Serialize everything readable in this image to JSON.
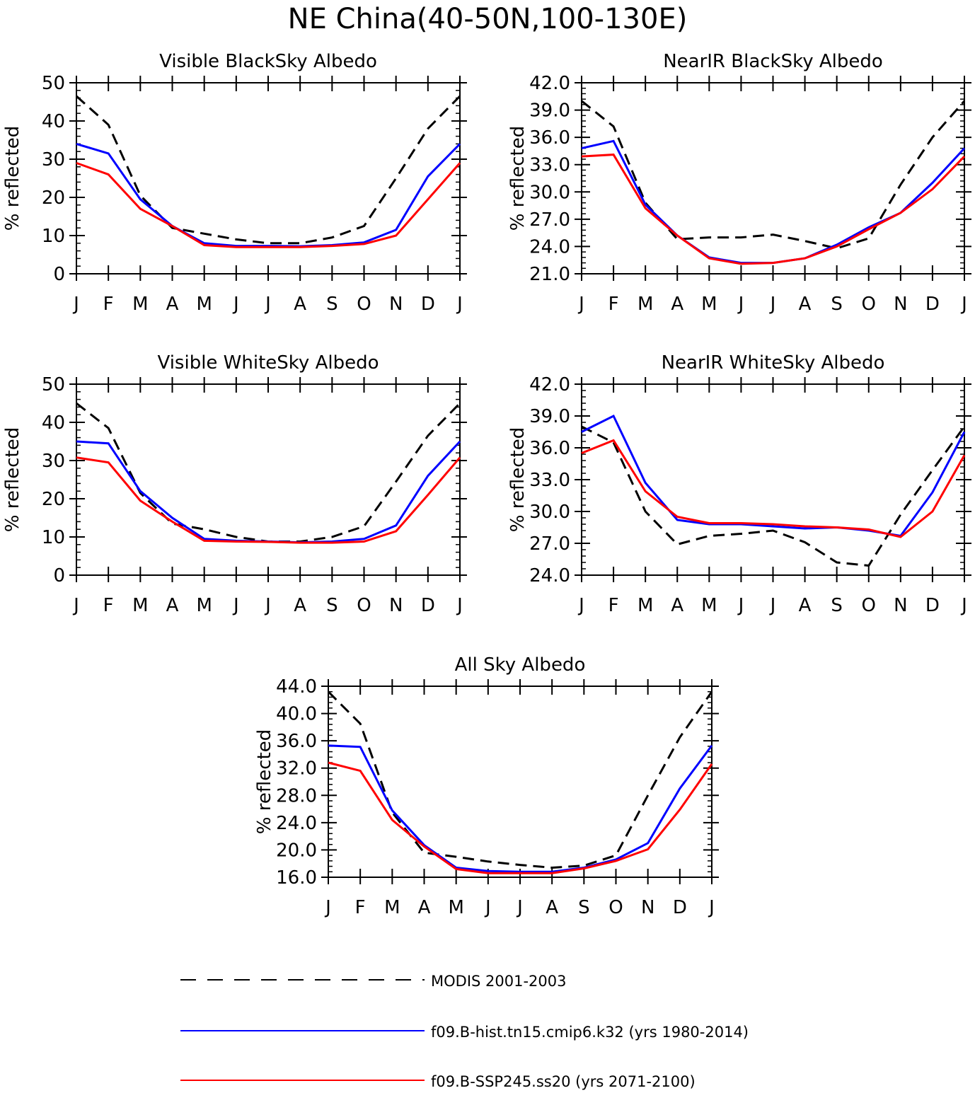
{
  "figure": {
    "title": "NE China(40-50N,100-130E)"
  },
  "legend": {
    "placement": "bottom",
    "entries": [
      {
        "label": "MODIS 2001-2003",
        "color": "#000000",
        "dash": true
      },
      {
        "label": "f09.B-hist.tn15.cmip6.k32 (yrs 1980-2014)",
        "color": "#0000ff",
        "dash": false
      },
      {
        "label": "f09.B-SSP245.ss20 (yrs 2071-2100)",
        "color": "#ff0000",
        "dash": false
      }
    ]
  },
  "chart_data": [
    {
      "type": "line",
      "title": "Visible BlackSky Albedo",
      "xlabel": "",
      "ylabel": "% reflected",
      "categories": [
        "J",
        "F",
        "M",
        "A",
        "M",
        "J",
        "J",
        "A",
        "S",
        "O",
        "N",
        "D",
        "J"
      ],
      "ylim": [
        0,
        50
      ],
      "yticks": [
        "0",
        "10",
        "20",
        "30",
        "40",
        "50"
      ],
      "ytick_values": [
        0,
        10,
        20,
        30,
        40,
        50
      ],
      "grid": false,
      "series": [
        {
          "name": "MODIS 2001-2003",
          "color": "#000000",
          "dash": true,
          "values": [
            46.5,
            39.0,
            20.5,
            12.0,
            10.5,
            9.0,
            8.0,
            8.0,
            9.5,
            12.5,
            25.0,
            38.0,
            46.5
          ]
        },
        {
          "name": "f09.B-hist.tn15.cmip6.k32 (yrs 1980-2014)",
          "color": "#0000ff",
          "dash": false,
          "values": [
            34.0,
            31.5,
            19.5,
            12.5,
            8.0,
            7.3,
            7.3,
            7.2,
            7.5,
            8.2,
            11.5,
            25.5,
            34.0
          ]
        },
        {
          "name": "f09.B-SSP245.ss20 (yrs 2071-2100)",
          "color": "#ff0000",
          "dash": false,
          "values": [
            29.0,
            26.0,
            17.0,
            12.5,
            7.5,
            7.0,
            7.0,
            7.0,
            7.3,
            7.8,
            10.0,
            19.5,
            29.0
          ]
        }
      ]
    },
    {
      "type": "line",
      "title": "NearIR BlackSky Albedo",
      "xlabel": "",
      "ylabel": "% reflected",
      "categories": [
        "J",
        "F",
        "M",
        "A",
        "M",
        "J",
        "J",
        "A",
        "S",
        "O",
        "N",
        "D",
        "J"
      ],
      "ylim": [
        21,
        42
      ],
      "yticks": [
        "21.0",
        "24.0",
        "27.0",
        "30.0",
        "33.0",
        "36.0",
        "39.0",
        "42.0"
      ],
      "ytick_values": [
        21,
        24,
        27,
        30,
        33,
        36,
        39,
        42
      ],
      "grid": false,
      "series": [
        {
          "name": "MODIS 2001-2003",
          "color": "#000000",
          "dash": true,
          "values": [
            40.0,
            37.2,
            28.8,
            24.8,
            25.0,
            25.0,
            25.3,
            24.6,
            23.8,
            24.9,
            30.8,
            36.0,
            40.0
          ]
        },
        {
          "name": "f09.B-hist.tn15.cmip6.k32 (yrs 1980-2014)",
          "color": "#0000ff",
          "dash": false,
          "values": [
            34.8,
            35.6,
            28.6,
            25.2,
            22.8,
            22.2,
            22.2,
            22.7,
            24.2,
            26.1,
            27.7,
            31.0,
            34.8
          ]
        },
        {
          "name": "f09.B-SSP245.ss20 (yrs 2071-2100)",
          "color": "#ff0000",
          "dash": false,
          "values": [
            33.9,
            34.1,
            28.2,
            25.2,
            22.7,
            22.1,
            22.2,
            22.7,
            24.0,
            25.9,
            27.7,
            30.3,
            33.9
          ]
        }
      ]
    },
    {
      "type": "line",
      "title": "Visible WhiteSky Albedo",
      "xlabel": "",
      "ylabel": "% reflected",
      "categories": [
        "J",
        "F",
        "M",
        "A",
        "M",
        "J",
        "J",
        "A",
        "S",
        "O",
        "N",
        "D",
        "J"
      ],
      "ylim": [
        0,
        50
      ],
      "yticks": [
        "0",
        "10",
        "20",
        "30",
        "40",
        "50"
      ],
      "ytick_values": [
        0,
        10,
        20,
        30,
        40,
        50
      ],
      "grid": false,
      "series": [
        {
          "name": "MODIS 2001-2003",
          "color": "#000000",
          "dash": true,
          "values": [
            45.0,
            38.5,
            21.5,
            13.5,
            12.0,
            10.0,
            8.8,
            8.8,
            10.0,
            12.8,
            24.5,
            36.5,
            45.0
          ]
        },
        {
          "name": "f09.B-hist.tn15.cmip6.k32 (yrs 1980-2014)",
          "color": "#0000ff",
          "dash": false,
          "values": [
            35.0,
            34.5,
            22.0,
            15.0,
            9.5,
            9.0,
            8.8,
            8.6,
            8.8,
            9.5,
            13.0,
            26.0,
            35.0
          ]
        },
        {
          "name": "f09.B-SSP245.ss20 (yrs 2071-2100)",
          "color": "#ff0000",
          "dash": false,
          "values": [
            30.8,
            29.5,
            19.5,
            14.0,
            9.0,
            8.8,
            8.7,
            8.5,
            8.5,
            8.8,
            11.5,
            21.0,
            30.8
          ]
        }
      ]
    },
    {
      "type": "line",
      "title": "NearIR WhiteSky Albedo",
      "xlabel": "",
      "ylabel": "% reflected",
      "categories": [
        "J",
        "F",
        "M",
        "A",
        "M",
        "J",
        "J",
        "A",
        "S",
        "O",
        "N",
        "D",
        "J"
      ],
      "ylim": [
        24,
        42
      ],
      "yticks": [
        "24.0",
        "27.0",
        "30.0",
        "33.0",
        "36.0",
        "39.0",
        "42.0"
      ],
      "ytick_values": [
        24,
        27,
        30,
        33,
        36,
        39,
        42
      ],
      "grid": false,
      "series": [
        {
          "name": "MODIS 2001-2003",
          "color": "#000000",
          "dash": true,
          "values": [
            38.0,
            36.5,
            30.0,
            26.9,
            27.7,
            27.9,
            28.2,
            27.1,
            25.2,
            24.9,
            29.7,
            33.9,
            38.0
          ]
        },
        {
          "name": "f09.B-hist.tn15.cmip6.k32 (yrs 1980-2014)",
          "color": "#0000ff",
          "dash": false,
          "values": [
            37.5,
            39.0,
            32.7,
            29.2,
            28.8,
            28.8,
            28.6,
            28.4,
            28.5,
            28.2,
            27.7,
            31.8,
            37.5
          ]
        },
        {
          "name": "f09.B-SSP245.ss20 (yrs 2071-2100)",
          "color": "#ff0000",
          "dash": false,
          "values": [
            35.5,
            36.7,
            31.9,
            29.5,
            28.9,
            28.9,
            28.8,
            28.6,
            28.5,
            28.3,
            27.6,
            30.0,
            35.3
          ]
        }
      ]
    },
    {
      "type": "line",
      "title": "All Sky Albedo",
      "xlabel": "",
      "ylabel": "% reflected",
      "categories": [
        "J",
        "F",
        "M",
        "A",
        "M",
        "J",
        "J",
        "A",
        "S",
        "O",
        "N",
        "D",
        "J"
      ],
      "ylim": [
        16,
        44
      ],
      "yticks": [
        "16.0",
        "20.0",
        "24.0",
        "28.0",
        "32.0",
        "36.0",
        "40.0",
        "44.0"
      ],
      "ytick_values": [
        16,
        20,
        24,
        28,
        32,
        36,
        40,
        44
      ],
      "grid": false,
      "series": [
        {
          "name": "MODIS 2001-2003",
          "color": "#000000",
          "dash": true,
          "values": [
            43.2,
            38.5,
            25.5,
            19.6,
            19.0,
            18.3,
            17.8,
            17.4,
            17.7,
            19.2,
            28.0,
            36.5,
            43.2
          ]
        },
        {
          "name": "f09.B-hist.tn15.cmip6.k32 (yrs 1980-2014)",
          "color": "#0000ff",
          "dash": false,
          "values": [
            35.3,
            35.1,
            25.8,
            20.7,
            17.4,
            16.9,
            16.8,
            16.8,
            17.4,
            18.6,
            21.0,
            29.0,
            35.3
          ]
        },
        {
          "name": "f09.B-SSP245.ss20 (yrs 2071-2100)",
          "color": "#ff0000",
          "dash": false,
          "values": [
            32.8,
            31.6,
            24.4,
            20.5,
            17.2,
            16.6,
            16.6,
            16.6,
            17.3,
            18.4,
            20.1,
            25.9,
            32.6
          ]
        }
      ]
    }
  ]
}
